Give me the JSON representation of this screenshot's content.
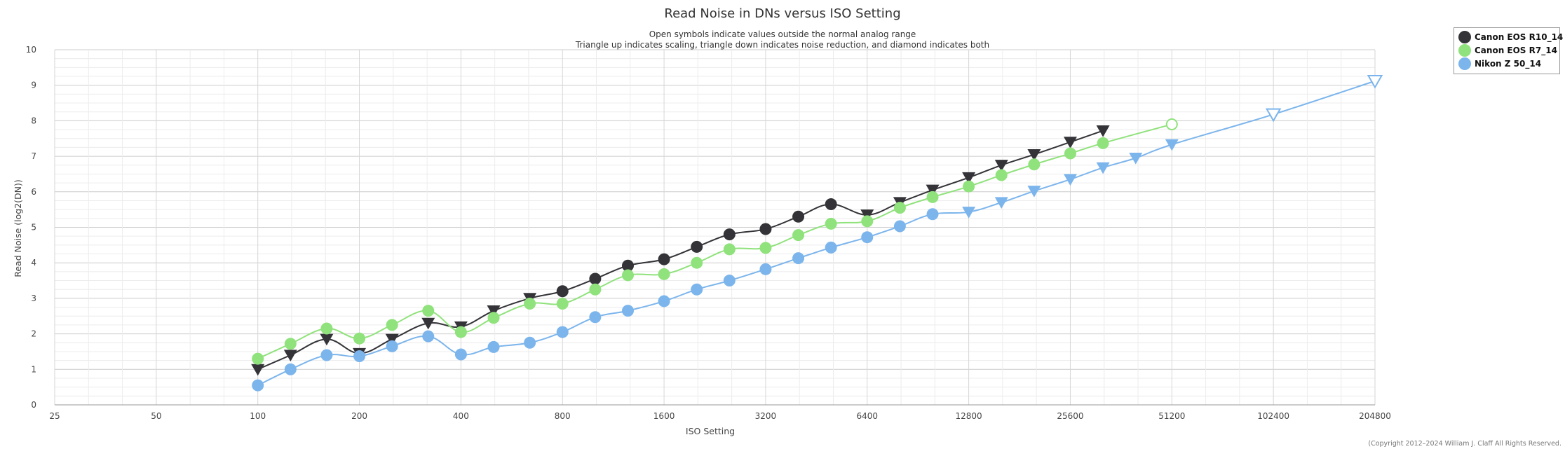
{
  "chart_data": {
    "type": "line",
    "title": "Read Noise in DNs versus ISO Setting",
    "subtitle_lines": [
      "Open symbols indicate values outside the normal analog range",
      "Triangle up indicates scaling, triangle down indicates noise reduction, and diamond indicates both"
    ],
    "xlabel": "ISO Setting",
    "ylabel": "Read Noise (log2(DN))",
    "x_scale": "log2",
    "x_ticks": [
      "25",
      "50",
      "100",
      "200",
      "400",
      "800",
      "1600",
      "3200",
      "6400",
      "12800",
      "25600",
      "51200",
      "102400",
      "204800"
    ],
    "xlim": [
      25,
      204800
    ],
    "ylim": [
      0,
      10
    ],
    "y_ticks": [
      "0",
      "1",
      "2",
      "3",
      "4",
      "5",
      "6",
      "7",
      "8",
      "9",
      "10"
    ],
    "grid": true,
    "legend_position": "top-right",
    "copyright": "(Copyright 2012–2024 William J. Claff All Rights Reserved.",
    "series": [
      {
        "name": "Canon EOS R10_14",
        "color": "#333338",
        "points": [
          {
            "x": 100,
            "y": 1.0,
            "marker": "triangle-down"
          },
          {
            "x": 125,
            "y": 1.4,
            "marker": "triangle-down"
          },
          {
            "x": 160,
            "y": 1.85,
            "marker": "triangle-down"
          },
          {
            "x": 200,
            "y": 1.45,
            "marker": "triangle-down"
          },
          {
            "x": 250,
            "y": 1.85,
            "marker": "triangle-down"
          },
          {
            "x": 320,
            "y": 2.3,
            "marker": "triangle-down"
          },
          {
            "x": 400,
            "y": 2.2,
            "marker": "triangle-down"
          },
          {
            "x": 500,
            "y": 2.65,
            "marker": "triangle-down"
          },
          {
            "x": 640,
            "y": 3.0,
            "marker": "triangle-down"
          },
          {
            "x": 800,
            "y": 3.2,
            "marker": "circle"
          },
          {
            "x": 1000,
            "y": 3.55,
            "marker": "circle"
          },
          {
            "x": 1250,
            "y": 3.92,
            "marker": "circle"
          },
          {
            "x": 1600,
            "y": 4.1,
            "marker": "circle"
          },
          {
            "x": 2000,
            "y": 4.45,
            "marker": "circle"
          },
          {
            "x": 2500,
            "y": 4.8,
            "marker": "circle"
          },
          {
            "x": 3200,
            "y": 4.95,
            "marker": "circle"
          },
          {
            "x": 4000,
            "y": 5.3,
            "marker": "circle"
          },
          {
            "x": 5000,
            "y": 5.65,
            "marker": "circle"
          },
          {
            "x": 6400,
            "y": 5.35,
            "marker": "triangle-down"
          },
          {
            "x": 8000,
            "y": 5.7,
            "marker": "triangle-down"
          },
          {
            "x": 10000,
            "y": 6.05,
            "marker": "triangle-down"
          },
          {
            "x": 12800,
            "y": 6.4,
            "marker": "triangle-down"
          },
          {
            "x": 16000,
            "y": 6.75,
            "marker": "triangle-down"
          },
          {
            "x": 20000,
            "y": 7.05,
            "marker": "triangle-down"
          },
          {
            "x": 25600,
            "y": 7.4,
            "marker": "triangle-down"
          },
          {
            "x": 32000,
            "y": 7.72,
            "marker": "triangle-down"
          }
        ]
      },
      {
        "name": "Canon EOS R7_14",
        "color": "#90e27c",
        "points": [
          {
            "x": 100,
            "y": 1.3,
            "marker": "circle"
          },
          {
            "x": 125,
            "y": 1.72,
            "marker": "circle"
          },
          {
            "x": 160,
            "y": 2.15,
            "marker": "circle"
          },
          {
            "x": 200,
            "y": 1.87,
            "marker": "circle"
          },
          {
            "x": 250,
            "y": 2.25,
            "marker": "circle"
          },
          {
            "x": 320,
            "y": 2.65,
            "marker": "circle"
          },
          {
            "x": 400,
            "y": 2.05,
            "marker": "circle"
          },
          {
            "x": 500,
            "y": 2.45,
            "marker": "circle"
          },
          {
            "x": 640,
            "y": 2.85,
            "marker": "circle"
          },
          {
            "x": 800,
            "y": 2.85,
            "marker": "circle"
          },
          {
            "x": 1000,
            "y": 3.25,
            "marker": "circle"
          },
          {
            "x": 1250,
            "y": 3.65,
            "marker": "circle"
          },
          {
            "x": 1600,
            "y": 3.68,
            "marker": "circle"
          },
          {
            "x": 2000,
            "y": 4.0,
            "marker": "circle"
          },
          {
            "x": 2500,
            "y": 4.38,
            "marker": "circle"
          },
          {
            "x": 3200,
            "y": 4.42,
            "marker": "circle"
          },
          {
            "x": 4000,
            "y": 4.78,
            "marker": "circle"
          },
          {
            "x": 5000,
            "y": 5.1,
            "marker": "circle"
          },
          {
            "x": 6400,
            "y": 5.17,
            "marker": "circle"
          },
          {
            "x": 8000,
            "y": 5.55,
            "marker": "circle"
          },
          {
            "x": 10000,
            "y": 5.85,
            "marker": "circle"
          },
          {
            "x": 12800,
            "y": 6.15,
            "marker": "circle"
          },
          {
            "x": 16000,
            "y": 6.47,
            "marker": "circle"
          },
          {
            "x": 20000,
            "y": 6.77,
            "marker": "circle"
          },
          {
            "x": 25600,
            "y": 7.08,
            "marker": "circle"
          },
          {
            "x": 32000,
            "y": 7.37,
            "marker": "circle"
          },
          {
            "x": 51200,
            "y": 7.9,
            "marker": "circle-open"
          }
        ]
      },
      {
        "name": "Nikon Z 50_14",
        "color": "#7cb5ec",
        "points": [
          {
            "x": 100,
            "y": 0.55,
            "marker": "circle"
          },
          {
            "x": 125,
            "y": 1.0,
            "marker": "circle"
          },
          {
            "x": 160,
            "y": 1.4,
            "marker": "circle"
          },
          {
            "x": 200,
            "y": 1.37,
            "marker": "circle"
          },
          {
            "x": 250,
            "y": 1.65,
            "marker": "circle"
          },
          {
            "x": 320,
            "y": 1.93,
            "marker": "circle"
          },
          {
            "x": 400,
            "y": 1.42,
            "marker": "circle"
          },
          {
            "x": 500,
            "y": 1.63,
            "marker": "circle"
          },
          {
            "x": 640,
            "y": 1.75,
            "marker": "circle"
          },
          {
            "x": 800,
            "y": 2.05,
            "marker": "circle"
          },
          {
            "x": 1000,
            "y": 2.47,
            "marker": "circle"
          },
          {
            "x": 1250,
            "y": 2.65,
            "marker": "circle"
          },
          {
            "x": 1600,
            "y": 2.92,
            "marker": "circle"
          },
          {
            "x": 2000,
            "y": 3.25,
            "marker": "circle"
          },
          {
            "x": 2500,
            "y": 3.5,
            "marker": "circle"
          },
          {
            "x": 3200,
            "y": 3.82,
            "marker": "circle"
          },
          {
            "x": 4000,
            "y": 4.13,
            "marker": "circle"
          },
          {
            "x": 5000,
            "y": 4.43,
            "marker": "circle"
          },
          {
            "x": 6400,
            "y": 4.72,
            "marker": "circle"
          },
          {
            "x": 8000,
            "y": 5.03,
            "marker": "circle"
          },
          {
            "x": 10000,
            "y": 5.37,
            "marker": "circle"
          },
          {
            "x": 12800,
            "y": 5.43,
            "marker": "triangle-down"
          },
          {
            "x": 16000,
            "y": 5.7,
            "marker": "triangle-down"
          },
          {
            "x": 20000,
            "y": 6.02,
            "marker": "triangle-down"
          },
          {
            "x": 25600,
            "y": 6.35,
            "marker": "triangle-down"
          },
          {
            "x": 32000,
            "y": 6.68,
            "marker": "triangle-down"
          },
          {
            "x": 40000,
            "y": 6.95,
            "marker": "triangle-down"
          },
          {
            "x": 51200,
            "y": 7.33,
            "marker": "triangle-down"
          },
          {
            "x": 102400,
            "y": 8.18,
            "marker": "triangle-down-open"
          },
          {
            "x": 204800,
            "y": 9.12,
            "marker": "triangle-down-open"
          }
        ]
      }
    ]
  }
}
